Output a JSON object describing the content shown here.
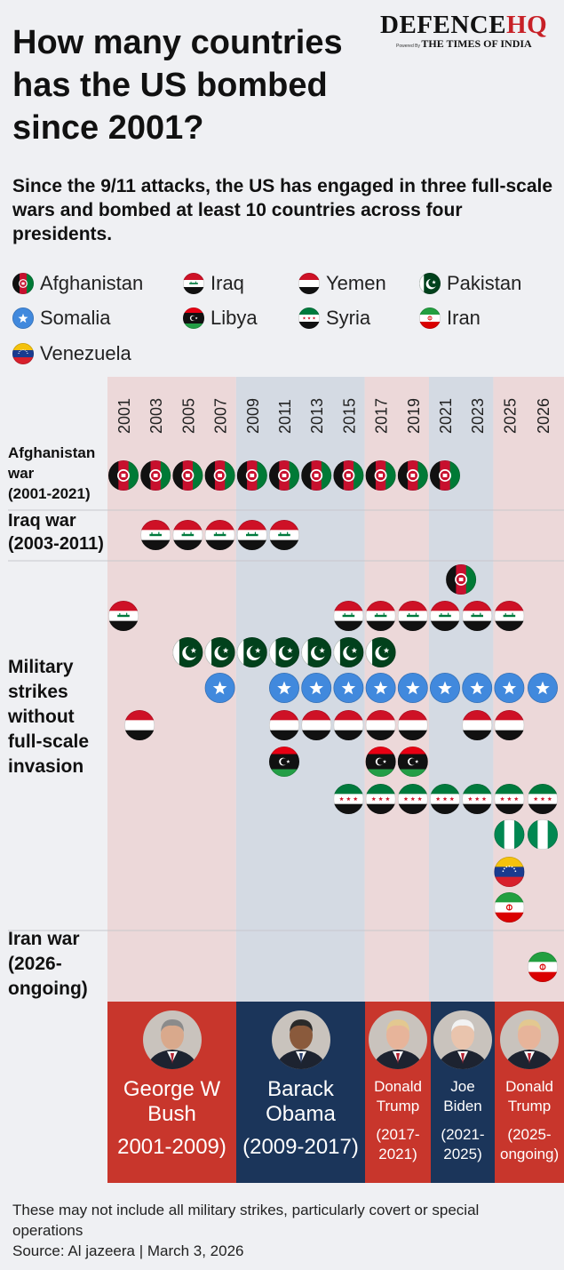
{
  "header": {
    "title": "How many countries has the US bombed since 2001?",
    "subtitle": "Since the 9/11 attacks, the US has engaged in three full-scale wars and bombed at least 10 countries across four presidents.",
    "logo_main_left": "DEFENCE",
    "logo_main_right": "HQ",
    "logo_powered": "Powered By",
    "logo_toi": "THE TIMES OF INDIA"
  },
  "legend": [
    {
      "name": "Afghanistan",
      "flag": "afghanistan"
    },
    {
      "name": "Iraq",
      "flag": "iraq"
    },
    {
      "name": "Yemen",
      "flag": "yemen"
    },
    {
      "name": "Pakistan",
      "flag": "pakistan"
    },
    {
      "name": "Somalia",
      "flag": "somalia"
    },
    {
      "name": "Libya",
      "flag": "libya"
    },
    {
      "name": "Syria",
      "flag": "syria"
    },
    {
      "name": "Iran",
      "flag": "iran"
    },
    {
      "name": "Venezuela",
      "flag": "venezuela"
    }
  ],
  "chart_data": {
    "type": "table",
    "x_ticks": [
      "2001",
      "2003",
      "2005",
      "2007",
      "2009",
      "2011",
      "2013",
      "2015",
      "2017",
      "2019",
      "2021",
      "2023",
      "2025",
      "2026"
    ],
    "sections": [
      {
        "label": "Afghanistan war (2001-2021)",
        "rows": [
          {
            "flag": "afghanistan",
            "years": [
              "2001",
              "2003",
              "2005",
              "2007",
              "2009",
              "2011",
              "2013",
              "2015",
              "2017",
              "2019",
              "2021"
            ]
          }
        ]
      },
      {
        "label": "Iraq war (2003-2011)",
        "rows": [
          {
            "flag": "iraq",
            "years": [
              "2003",
              "2005",
              "2007",
              "2009",
              "2011"
            ]
          }
        ]
      },
      {
        "label": "Military strikes without full-scale invasion",
        "rows": [
          {
            "flag": "afghanistan",
            "years": [
              "2022"
            ]
          },
          {
            "flag": "iraq",
            "years": [
              "2001",
              "2015",
              "2017",
              "2019",
              "2021",
              "2023",
              "2025"
            ]
          },
          {
            "flag": "pakistan",
            "years": [
              "2005",
              "2007",
              "2009",
              "2011",
              "2013",
              "2015",
              "2017"
            ]
          },
          {
            "flag": "somalia",
            "years": [
              "2007",
              "2011",
              "2013",
              "2015",
              "2017",
              "2019",
              "2021",
              "2023",
              "2025",
              "2026"
            ]
          },
          {
            "flag": "yemen",
            "years": [
              "2002",
              "2011",
              "2013",
              "2015",
              "2017",
              "2019",
              "2023",
              "2025"
            ]
          },
          {
            "flag": "libya",
            "years": [
              "2011",
              "2017",
              "2019"
            ]
          },
          {
            "flag": "syria",
            "years": [
              "2015",
              "2017",
              "2019",
              "2021",
              "2023",
              "2025",
              "2026"
            ]
          },
          {
            "flag": "nigeria",
            "years": [
              "2025",
              "2026"
            ]
          },
          {
            "flag": "venezuela",
            "years": [
              "2025"
            ]
          },
          {
            "flag": "iran",
            "years": [
              "2025"
            ]
          }
        ]
      },
      {
        "label": "Iran war (2026-ongoing)",
        "rows": [
          {
            "flag": "iran",
            "years": [
              "2026"
            ]
          }
        ]
      }
    ],
    "presidents": [
      {
        "name": "George W Bush",
        "years": "(2001-2009)",
        "display_years": "2001-2009)",
        "from": 2001,
        "to": 2009,
        "color": "#c8362c"
      },
      {
        "name": "Barack Obama",
        "years": "(2009-2017)",
        "display_years": "(2009-2017)",
        "from": 2009,
        "to": 2017,
        "color": "#1b355a"
      },
      {
        "name": "Donald Trump",
        "years": "(2017-2021)",
        "display_years": "(2017-2021)",
        "from": 2017,
        "to": 2021,
        "color": "#c8362c"
      },
      {
        "name": "Joe Biden",
        "years": "(2021-2025)",
        "display_years": "(2021-2025)",
        "from": 2021,
        "to": 2025,
        "color": "#1b355a"
      },
      {
        "name": "Donald Trump",
        "years": "(2025-ongoing)",
        "display_years": "(2025-ongoing)",
        "from": 2025,
        "to": 2026,
        "color": "#c8362c"
      }
    ],
    "colors": {
      "republican_band": "#ecd8d9",
      "democrat_band": "#d4dae3",
      "republican": "#c8362c",
      "democrat": "#1b355a",
      "divider": "#c7c7cc"
    }
  },
  "footer": {
    "note": "These may not include all military strikes, particularly covert or special operations",
    "source": "Source: Al jazeera | March 3, 2026"
  }
}
